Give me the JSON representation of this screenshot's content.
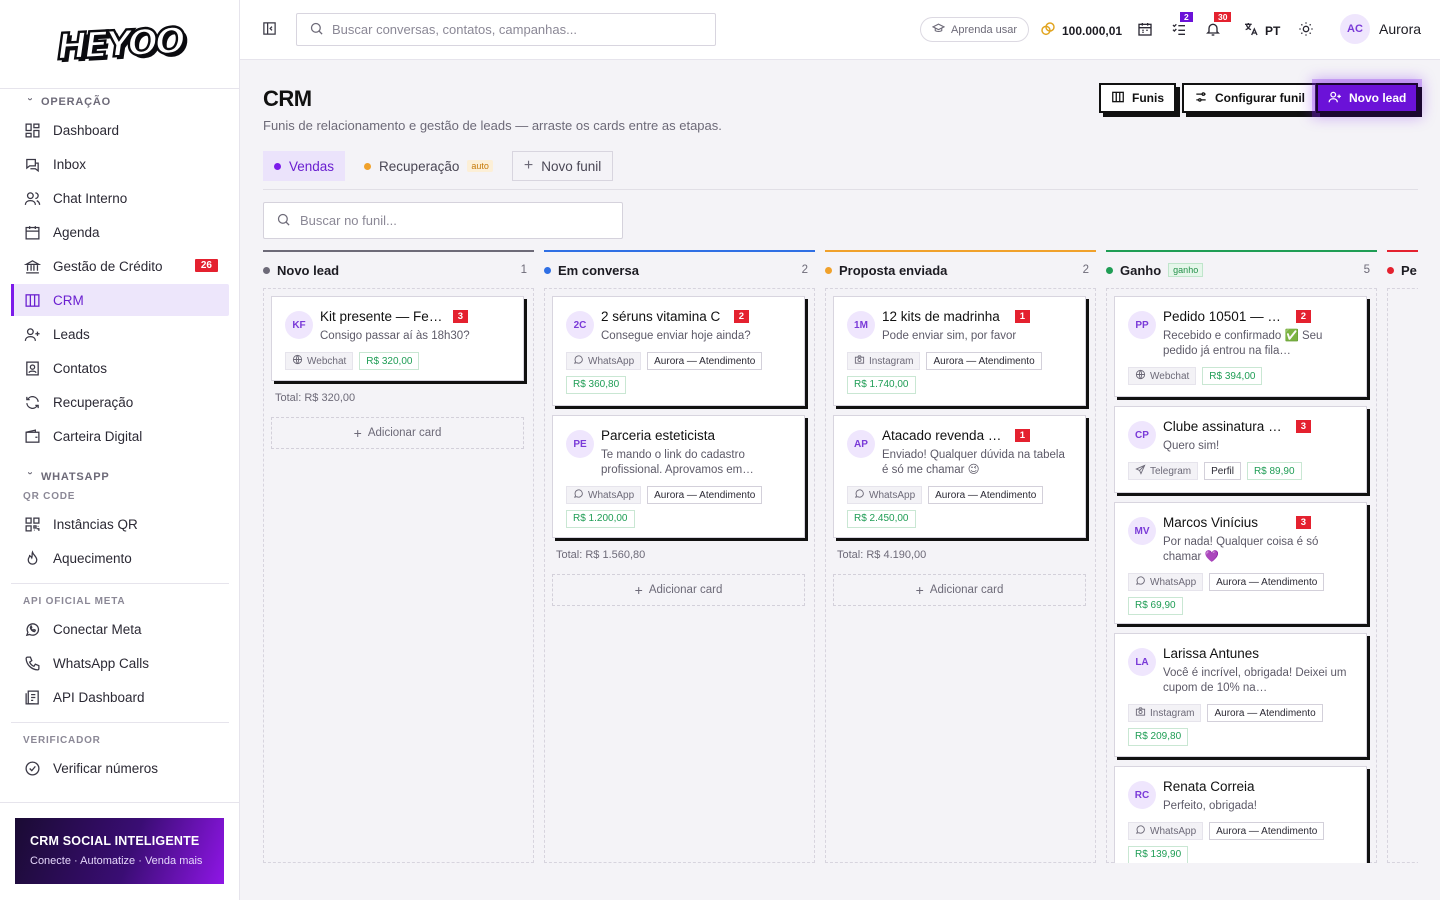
{
  "brand": {
    "logo_text": "HEYOO"
  },
  "sidebar": {
    "sections": {
      "operacao": "OPERAÇÃO",
      "whatsapp": "WHATSAPP",
      "qr_code": "QR CODE",
      "api_meta": "API OFICIAL META",
      "verificador": "VERIFICADOR"
    },
    "items": [
      {
        "label": "Dashboard",
        "icon": "dashboard-icon"
      },
      {
        "label": "Inbox",
        "icon": "inbox-icon"
      },
      {
        "label": "Chat Interno",
        "icon": "users-icon"
      },
      {
        "label": "Agenda",
        "icon": "calendar-icon"
      },
      {
        "label": "Gestão de Crédito",
        "icon": "bank-icon",
        "badge": "26"
      },
      {
        "label": "CRM",
        "icon": "kanban-icon",
        "active": true
      },
      {
        "label": "Leads",
        "icon": "user-plus-icon"
      },
      {
        "label": "Contatos",
        "icon": "contact-card-icon"
      },
      {
        "label": "Recuperação",
        "icon": "refresh-icon"
      },
      {
        "label": "Carteira Digital",
        "icon": "wallet-icon"
      },
      {
        "label": "Instâncias QR",
        "icon": "qr-icon"
      },
      {
        "label": "Aquecimento",
        "icon": "flame-icon"
      },
      {
        "label": "Conectar Meta",
        "icon": "whatsapp-icon"
      },
      {
        "label": "WhatsApp Calls",
        "icon": "phone-icon"
      },
      {
        "label": "API Dashboard",
        "icon": "api-icon"
      },
      {
        "label": "Verificar números",
        "icon": "check-circle-icon"
      }
    ],
    "promo": {
      "title": "CRM SOCIAL INTELIGENTE",
      "subtitle": "Conecte · Automatize · Venda mais"
    }
  },
  "topbar": {
    "search_placeholder": "Buscar conversas, contatos, campanhas...",
    "learn_label": "Aprenda usar",
    "coins": "100.000,01",
    "tasks_badge": "2",
    "notif_badge": "30",
    "lang": "PT",
    "user": {
      "initials": "AC",
      "name": "Aurora"
    }
  },
  "page": {
    "title": "CRM",
    "subtitle": "Funis de relacionamento e gestão de leads — arraste os cards entre as etapas.",
    "buttons": {
      "funis": "Funis",
      "configurar": "Configurar funil",
      "novo_lead": "Novo lead"
    },
    "tabs": [
      {
        "label": "Vendas",
        "color": "#7c1bea",
        "active": true
      },
      {
        "label": "Recuperação",
        "color": "#f0a12b",
        "tag": "auto"
      }
    ],
    "new_funnel": "Novo funil",
    "funnel_search_placeholder": "Buscar no funil..."
  },
  "board": {
    "add_card_label": "Adicionar card",
    "columns": [
      {
        "title": "Novo lead",
        "color": "#6d6a78",
        "count": "1",
        "total": "Total: R$ 320,00",
        "cards": [
          {
            "initials": "KF",
            "name": "Kit presente — Fern…",
            "unread": "3",
            "message": "Consigo passar aí às 18h30?",
            "channel": "Webchat",
            "channel_icon": "globe-icon",
            "agent": "",
            "value": "R$ 320,00"
          }
        ]
      },
      {
        "title": "Em conversa",
        "color": "#2f6fe4",
        "count": "2",
        "total": "Total: R$ 1.560,80",
        "cards": [
          {
            "initials": "2C",
            "name": "2 séruns vitamina C",
            "unread": "2",
            "message": "Consegue enviar hoje ainda?",
            "channel": "WhatsApp",
            "channel_icon": "chat-bubble-icon",
            "agent": "Aurora — Atendimento",
            "value": "R$ 360,80"
          },
          {
            "initials": "PE",
            "name": "Parceria esteticista",
            "unread": "",
            "message": "Te mando o link do cadastro profissional. Aprovamos em…",
            "channel": "WhatsApp",
            "channel_icon": "chat-bubble-icon",
            "agent": "Aurora — Atendimento",
            "value": "R$ 1.200,00"
          }
        ]
      },
      {
        "title": "Proposta enviada",
        "color": "#f0a12b",
        "count": "2",
        "total": "Total: R$ 4.190,00",
        "cards": [
          {
            "initials": "1M",
            "name": "12 kits de madrinha",
            "unread": "1",
            "message": "Pode enviar sim, por favor",
            "channel": "Instagram",
            "channel_icon": "camera-icon",
            "agent": "Aurora — Atendimento",
            "value": "R$ 1.740,00"
          },
          {
            "initials": "AP",
            "name": "Atacado revenda 3…",
            "unread": "1",
            "message": "Enviado! Qualquer dúvida na tabela é só me chamar 😉",
            "channel": "WhatsApp",
            "channel_icon": "chat-bubble-icon",
            "agent": "Aurora — Atendimento",
            "value": "R$ 2.450,00"
          }
        ]
      },
      {
        "title": "Ganho",
        "tag": "ganho",
        "color": "#1f9d55",
        "count": "5",
        "cards": [
          {
            "initials": "PP",
            "name": "Pedido 10501 — Pl…",
            "unread": "2",
            "message": "Recebido e confirmado ✅ Seu pedido já entrou na fila…",
            "channel": "Webchat",
            "channel_icon": "globe-icon",
            "agent": "",
            "value": "R$ 394,00"
          },
          {
            "initials": "CP",
            "name": "Clube assinatura pr…",
            "unread": "3",
            "message": "Quero sim!",
            "channel": "Telegram",
            "channel_icon": "send-icon",
            "agent": "Perfil",
            "value": "R$ 89,90"
          },
          {
            "initials": "MV",
            "name": "Marcos Vinícius",
            "unread": "3",
            "message": "Por nada! Qualquer coisa é só chamar 💜",
            "channel": "WhatsApp",
            "channel_icon": "chat-bubble-icon",
            "agent": "Aurora — Atendimento",
            "value": "R$ 69,90"
          },
          {
            "initials": "LA",
            "name": "Larissa Antunes",
            "unread": "",
            "message": "Você é incrível, obrigada! Deixei um cupom de 10% na…",
            "channel": "Instagram",
            "channel_icon": "camera-icon",
            "agent": "Aurora — Atendimento",
            "value": "R$ 209,80"
          },
          {
            "initials": "RC",
            "name": "Renata Correia",
            "unread": "",
            "message": "Perfeito, obrigada!",
            "channel": "WhatsApp",
            "channel_icon": "chat-bubble-icon",
            "agent": "Aurora — Atendimento",
            "value": "R$ 139,90"
          }
        ]
      },
      {
        "title": "Pe",
        "color": "#e4212f",
        "count": "",
        "cards": []
      }
    ]
  }
}
